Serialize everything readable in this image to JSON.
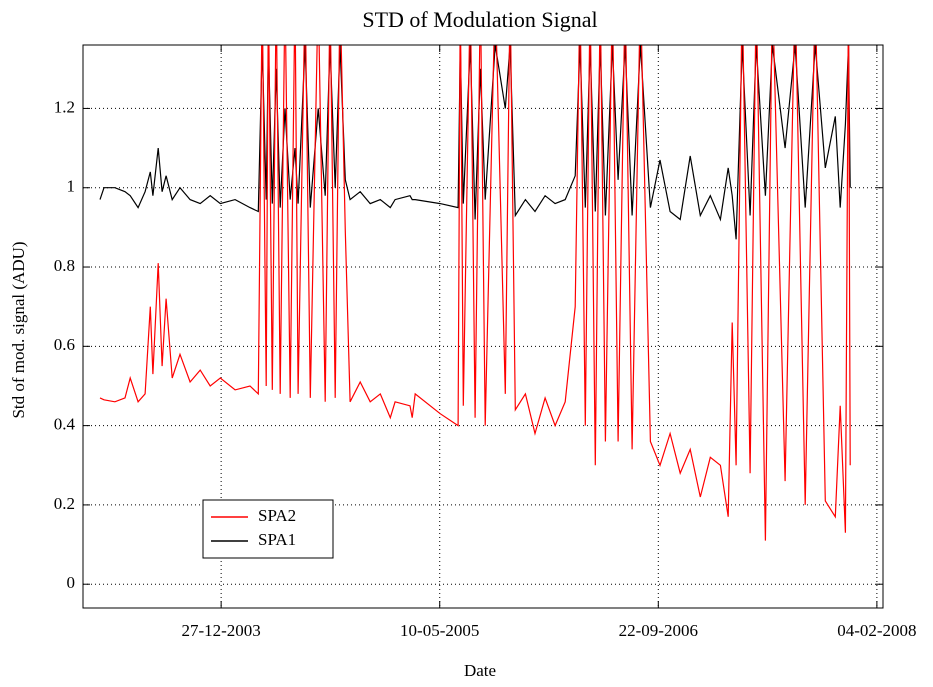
{
  "chart_data": {
    "type": "line",
    "title": "STD of Modulation Signal",
    "x_label": "Date",
    "y_label": "Std of mod. signal (ADU)",
    "xlim": [
      "14-02-2003",
      "18-02-2008"
    ],
    "xticks": [
      "27-12-2003",
      "10-05-2005",
      "22-09-2006",
      "04-02-2008"
    ],
    "ylim": [
      -0.06,
      1.36
    ],
    "yticks": [
      0,
      0.2,
      0.4,
      0.6,
      0.8,
      1,
      1.2
    ],
    "grid": true,
    "legend": "lower left",
    "x": [
      "25-03-2003",
      "03-04-2003",
      "28-04-2003",
      "21-05-2003",
      "02-06-2003",
      "20-06-2003",
      "06-07-2003",
      "18-07-2003",
      "24-07-2003",
      "05-08-2003",
      "14-08-2003",
      "23-08-2003",
      "06-09-2003",
      "24-09-2003",
      "17-10-2003",
      "09-11-2003",
      "02-12-2003",
      "25-12-2003",
      "28-01-2004",
      "02-03-2004",
      "21-03-2004",
      "30-03-2004",
      "08-04-2004",
      "13-04-2004",
      "22-04-2004",
      "01-05-2004",
      "10-05-2004",
      "21-05-2004",
      "02-06-2004",
      "13-06-2004",
      "20-06-2004",
      "06-07-2004",
      "18-07-2004",
      "05-08-2004",
      "21-08-2004",
      "01-09-2004",
      "13-09-2004",
      "24-09-2004",
      "06-10-2004",
      "17-10-2004",
      "09-11-2004",
      "02-12-2004",
      "25-12-2004",
      "17-01-2005",
      "28-01-2005",
      "03-03-2005",
      "08-03-2005",
      "15-03-2005",
      "11-05-2005",
      "21-06-2005",
      "26-06-2005",
      "03-07-2005",
      "19-07-2005",
      "30-07-2005",
      "11-08-2005",
      "22-08-2005",
      "14-09-2005",
      "07-10-2005",
      "18-10-2005",
      "30-10-2005",
      "22-11-2005",
      "14-12-2005",
      "06-01-2006",
      "29-01-2006",
      "21-02-2006",
      "16-03-2006",
      "27-03-2006",
      "08-04-2006",
      "19-04-2006",
      "01-05-2006",
      "12-05-2006",
      "24-05-2006",
      "09-06-2006",
      "22-06-2006",
      "08-07-2006",
      "24-07-2006",
      "12-08-2006",
      "04-09-2006",
      "26-09-2006",
      "19-10-2006",
      "11-11-2006",
      "04-12-2006",
      "27-12-2006",
      "19-01-2007",
      "11-02-2007",
      "01-03-2007",
      "10-03-2007",
      "19-03-2007",
      "02-04-2007",
      "20-04-2007",
      "04-05-2007",
      "25-05-2007",
      "10-06-2007",
      "09-07-2007",
      "01-08-2007",
      "24-08-2007",
      "16-09-2007",
      "09-10-2007",
      "01-11-2007",
      "12-11-2007",
      "24-11-2007",
      "01-12-2007",
      "05-12-2007"
    ],
    "series": [
      {
        "name": "SPA1",
        "color": "#000000",
        "values": [
          0.97,
          1.0,
          1.0,
          0.99,
          0.98,
          0.95,
          0.99,
          1.04,
          0.98,
          1.1,
          0.99,
          1.03,
          0.97,
          1.0,
          0.97,
          0.96,
          0.98,
          0.96,
          0.97,
          0.95,
          0.94,
          1.36,
          0.97,
          1.36,
          0.96,
          1.3,
          0.95,
          1.2,
          0.97,
          1.1,
          0.96,
          1.36,
          0.95,
          1.2,
          0.98,
          1.36,
          1.0,
          1.36,
          1.02,
          0.97,
          0.99,
          0.96,
          0.97,
          0.95,
          0.97,
          0.98,
          0.97,
          0.97,
          0.96,
          0.95,
          1.36,
          0.96,
          1.36,
          0.92,
          1.3,
          0.97,
          1.36,
          1.2,
          1.36,
          0.93,
          0.97,
          0.94,
          0.98,
          0.96,
          0.97,
          1.03,
          1.36,
          0.95,
          1.36,
          0.94,
          1.36,
          0.93,
          1.36,
          1.02,
          1.36,
          0.93,
          1.36,
          0.95,
          1.07,
          0.94,
          0.92,
          1.08,
          0.93,
          0.98,
          0.92,
          1.05,
          0.98,
          0.87,
          1.36,
          0.93,
          1.36,
          0.98,
          1.36,
          1.1,
          1.36,
          0.95,
          1.36,
          1.05,
          1.18,
          0.95,
          1.16,
          1.36,
          1.0
        ]
      },
      {
        "name": "SPA2",
        "color": "#ff0000",
        "values": [
          0.47,
          0.465,
          0.46,
          0.47,
          0.52,
          0.46,
          0.48,
          0.7,
          0.53,
          0.81,
          0.55,
          0.72,
          0.52,
          0.58,
          0.51,
          0.54,
          0.5,
          0.52,
          0.49,
          0.5,
          0.48,
          1.5,
          0.5,
          1.5,
          0.49,
          1.5,
          0.48,
          1.5,
          0.47,
          1.5,
          0.48,
          1.5,
          0.47,
          1.5,
          0.46,
          1.5,
          0.47,
          1.5,
          0.89,
          0.46,
          0.51,
          0.46,
          0.48,
          0.42,
          0.46,
          0.45,
          0.42,
          0.48,
          0.43,
          0.4,
          1.5,
          0.45,
          1.5,
          0.42,
          1.5,
          0.4,
          1.5,
          0.48,
          1.5,
          0.44,
          0.48,
          0.38,
          0.47,
          0.4,
          0.46,
          0.7,
          1.5,
          0.4,
          1.5,
          0.3,
          1.5,
          0.36,
          1.5,
          0.36,
          1.5,
          0.34,
          1.5,
          0.36,
          0.3,
          0.38,
          0.28,
          0.34,
          0.22,
          0.32,
          0.3,
          0.17,
          0.66,
          0.3,
          1.5,
          0.28,
          1.5,
          0.11,
          1.5,
          0.26,
          1.5,
          0.2,
          1.5,
          0.21,
          0.17,
          0.45,
          0.13,
          1.5,
          0.3
        ]
      }
    ]
  }
}
